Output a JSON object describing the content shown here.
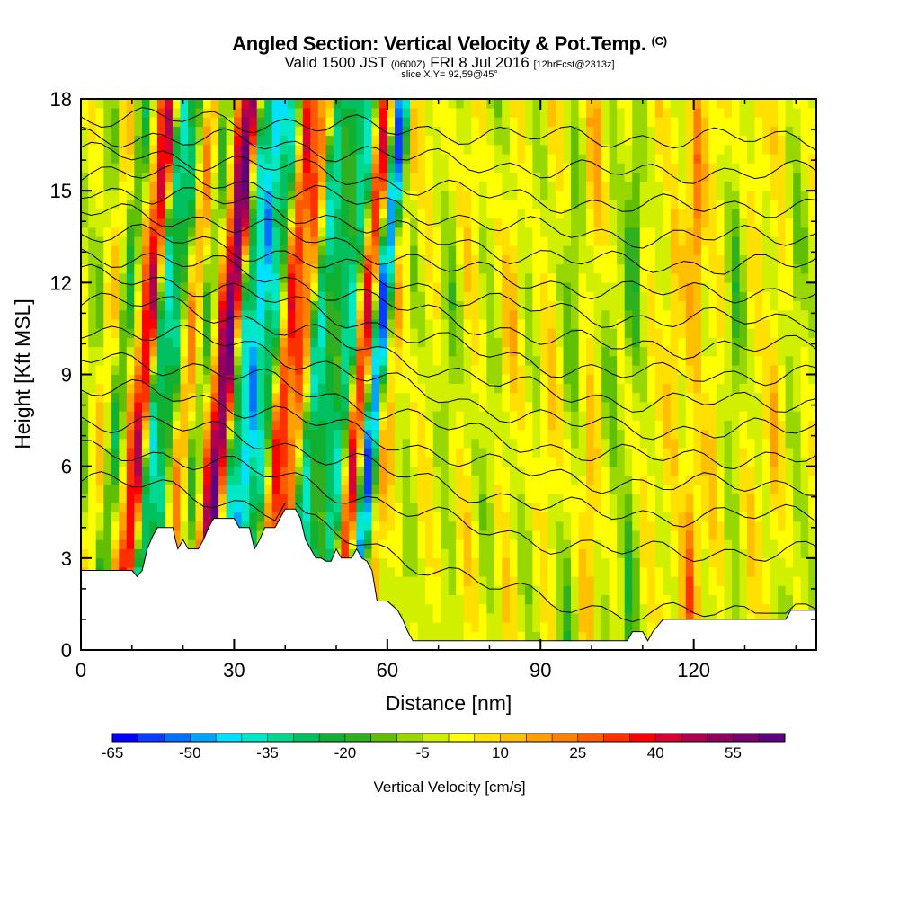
{
  "header": {
    "title": "Angled Section: Vertical Velocity & Pot.Temp.",
    "title_unit": "(C)",
    "valid_prefix": "Valid 1500 JST",
    "valid_z": "(0600Z)",
    "valid_date": "FRI 8 Jul 2016",
    "forecast": "[12hrFcst@2313z]",
    "slice": "slice X,Y= 92,59@45°"
  },
  "chart_data": {
    "type": "heatmap",
    "xlabel": "Distance [nm]",
    "ylabel": "Height [Kft MSL]",
    "xlim": [
      0,
      144
    ],
    "ylim": [
      0,
      18
    ],
    "x_ticks": [
      0,
      30,
      60,
      90,
      120
    ],
    "x_tick_labels": [
      "0",
      "30",
      "60",
      "90",
      "120"
    ],
    "y_ticks": [
      0,
      3,
      6,
      9,
      12,
      15,
      18
    ],
    "y_tick_labels": [
      "0",
      "3",
      "6",
      "9",
      "12",
      "15",
      "18"
    ],
    "colorbar": {
      "title": "Vertical Velocity [cm/s]",
      "min": -65,
      "max": 65,
      "step": 5,
      "tick_values": [
        -65,
        -50,
        -35,
        -20,
        -5,
        10,
        25,
        40,
        55
      ],
      "tick_labels": [
        "-65",
        "-50",
        "-35",
        "-20",
        "-5",
        "10",
        "25",
        "40",
        "55"
      ],
      "colors": [
        "#0000ff",
        "#0a3cff",
        "#0070ff",
        "#00a4ff",
        "#00e0ff",
        "#00e8c8",
        "#00d890",
        "#00c060",
        "#10b030",
        "#30b020",
        "#60c000",
        "#98d800",
        "#d0f000",
        "#ffff00",
        "#ffe000",
        "#ffc000",
        "#ffa000",
        "#ff8000",
        "#ff5a00",
        "#ff3000",
        "#ff0000",
        "#d80030",
        "#b00050",
        "#900060",
        "#780070",
        "#600080"
      ]
    },
    "terrain_heights_kft": [
      [
        0,
        2.6
      ],
      [
        10,
        2.6
      ],
      [
        11,
        2.4
      ],
      [
        12,
        2.6
      ],
      [
        13,
        3.3
      ],
      [
        14,
        3.7
      ],
      [
        15,
        4.0
      ],
      [
        18,
        4.0
      ],
      [
        18.5,
        3.6
      ],
      [
        19,
        3.3
      ],
      [
        20,
        3.6
      ],
      [
        21,
        3.3
      ],
      [
        23,
        3.3
      ],
      [
        24,
        3.6
      ],
      [
        25,
        4.0
      ],
      [
        26,
        4.3
      ],
      [
        30,
        4.3
      ],
      [
        31,
        4.0
      ],
      [
        33,
        4.0
      ],
      [
        34,
        3.3
      ],
      [
        35,
        3.6
      ],
      [
        36,
        4.0
      ],
      [
        38,
        4.0
      ],
      [
        39,
        4.3
      ],
      [
        40,
        4.6
      ],
      [
        42,
        4.6
      ],
      [
        43,
        4.3
      ],
      [
        44,
        3.6
      ],
      [
        45,
        3.3
      ],
      [
        46,
        3.0
      ],
      [
        47,
        3.0
      ],
      [
        48,
        2.9
      ],
      [
        49,
        2.9
      ],
      [
        50,
        3.3
      ],
      [
        51,
        3.0
      ],
      [
        53,
        3.0
      ],
      [
        54,
        3.3
      ],
      [
        55,
        3.0
      ],
      [
        56,
        2.9
      ],
      [
        57,
        2.6
      ],
      [
        58,
        1.6
      ],
      [
        60,
        1.6
      ],
      [
        62,
        1.3
      ],
      [
        63,
        1.0
      ],
      [
        64,
        0.6
      ],
      [
        65,
        0.3
      ],
      [
        68,
        0.3
      ],
      [
        69,
        0.3
      ],
      [
        82,
        0.3
      ],
      [
        83,
        0.3
      ],
      [
        107,
        0.3
      ],
      [
        108,
        0.6
      ],
      [
        110,
        0.6
      ],
      [
        111,
        0.3
      ],
      [
        112,
        0.6
      ],
      [
        114,
        1.0
      ],
      [
        120,
        1.0
      ],
      [
        126,
        1.0
      ],
      [
        138,
        1.0
      ],
      [
        139,
        1.3
      ],
      [
        144,
        1.3
      ]
    ],
    "columns": [
      {
        "x": 2,
        "w": -8
      },
      {
        "x": 5,
        "w": 10
      },
      {
        "x": 8,
        "w": -20
      },
      {
        "x": 11,
        "w": 15
      },
      {
        "x": 13,
        "w": 45
      },
      {
        "x": 15,
        "w": -40
      },
      {
        "x": 18,
        "w": -25
      },
      {
        "x": 21,
        "w": 20
      },
      {
        "x": 24,
        "w": -15
      },
      {
        "x": 27,
        "w": 30
      },
      {
        "x": 29,
        "w": 55
      },
      {
        "x": 31,
        "w": -35
      },
      {
        "x": 34,
        "w": -45
      },
      {
        "x": 37,
        "w": -30
      },
      {
        "x": 40,
        "w": 35
      },
      {
        "x": 43,
        "w": 25
      },
      {
        "x": 46,
        "w": -35
      },
      {
        "x": 49,
        "w": -20
      },
      {
        "x": 52,
        "w": -35
      },
      {
        "x": 55,
        "w": 40
      },
      {
        "x": 58,
        "w": -55
      },
      {
        "x": 61,
        "w": 15
      },
      {
        "x": 64,
        "w": -10
      },
      {
        "x": 68,
        "w": 5
      },
      {
        "x": 72,
        "w": -12
      },
      {
        "x": 76,
        "w": 8
      },
      {
        "x": 80,
        "w": -8
      },
      {
        "x": 84,
        "w": 12
      },
      {
        "x": 88,
        "w": -5
      },
      {
        "x": 92,
        "w": 10
      },
      {
        "x": 96,
        "w": -15
      },
      {
        "x": 100,
        "w": 15
      },
      {
        "x": 104,
        "w": -10
      },
      {
        "x": 108,
        "w": -20
      },
      {
        "x": 112,
        "w": 5
      },
      {
        "x": 116,
        "w": 12
      },
      {
        "x": 120,
        "w": 25
      },
      {
        "x": 124,
        "w": 10
      },
      {
        "x": 128,
        "w": -15
      },
      {
        "x": 132,
        "w": 8
      },
      {
        "x": 136,
        "w": 12
      },
      {
        "x": 140,
        "w": -10
      }
    ],
    "isentropes_kft_left": [
      5.5,
      6.5,
      7.5,
      8.5,
      9.5,
      10.5,
      11.4,
      12.2,
      12.9,
      13.6,
      14.3,
      15.0,
      15.6,
      16.2,
      16.8,
      17.4
    ],
    "isentropes_kft_right": [
      1.2,
      3.2,
      4.4,
      5.4,
      6.3,
      7.2,
      8.1,
      9.0,
      9.9,
      10.8,
      11.7,
      12.6,
      13.5,
      14.5,
      15.6,
      16.7
    ]
  }
}
